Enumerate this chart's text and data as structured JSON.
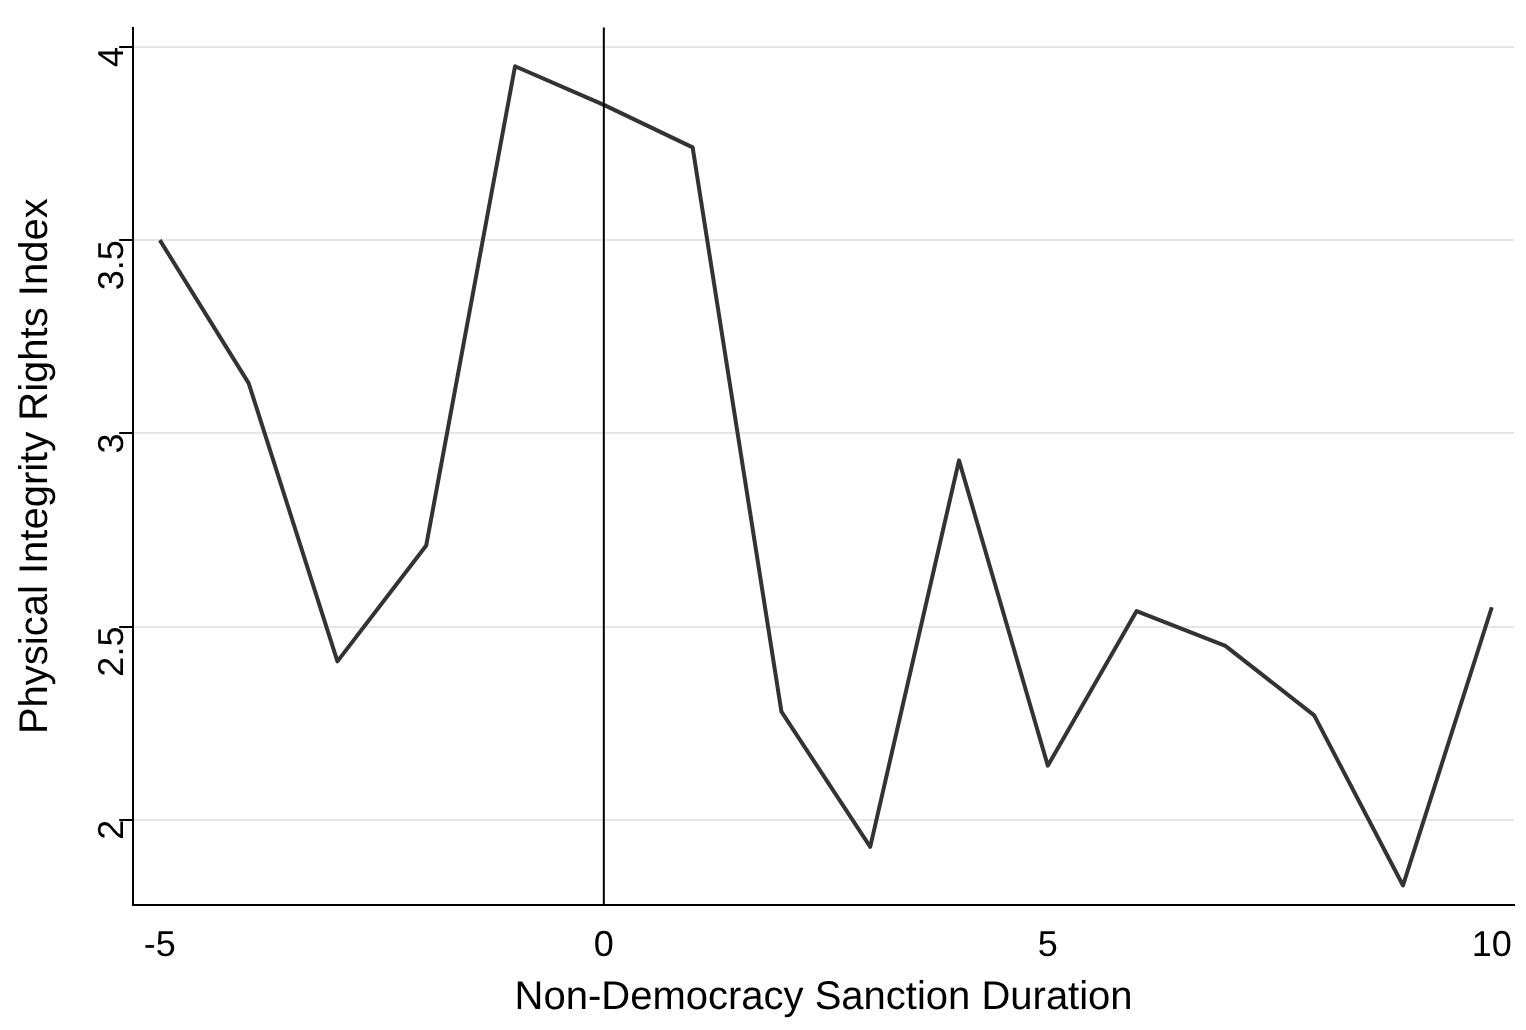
{
  "chart_data": {
    "type": "line",
    "xlabel": "Non-Democracy Sanction Duration",
    "ylabel": "Physical Integrity Rights Index",
    "x": [
      -5,
      -4,
      -3,
      -2,
      -1,
      0,
      1,
      2,
      3,
      4,
      5,
      6,
      7,
      8,
      9,
      10
    ],
    "series": [
      {
        "color": "#333333",
        "values": [
          3.5,
          3.13,
          2.41,
          2.71,
          3.95,
          3.85,
          3.74,
          2.28,
          1.93,
          2.93,
          2.14,
          2.54,
          2.45,
          2.27,
          1.83,
          2.55
        ]
      }
    ],
    "xlim": [
      -5.3,
      10.25
    ],
    "xticks": [
      -5,
      0,
      5,
      10
    ],
    "ylim": [
      1.78,
      4.05
    ],
    "yticks": [
      2,
      2.5,
      3,
      3.5,
      4
    ],
    "grid": "y",
    "legend": false,
    "marker": "none",
    "line_style": "solid",
    "ref_lines": [
      {
        "axis": "x",
        "value": 0,
        "color": "#000000"
      }
    ]
  }
}
